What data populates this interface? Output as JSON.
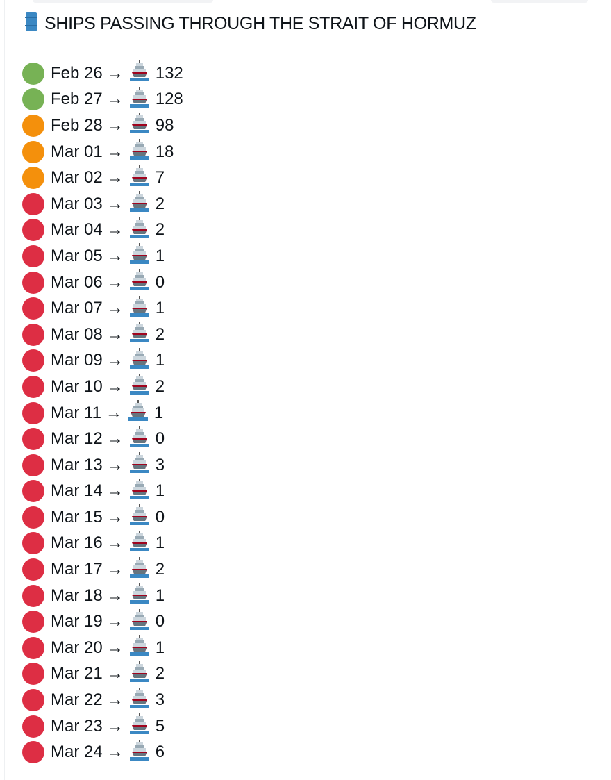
{
  "title": {
    "icon": "oil-drum-icon",
    "text": "SHIPS PASSING THROUGH THE STRAIT OF HORMUZ"
  },
  "arrow": "→",
  "status_colors": {
    "green": "#77b255",
    "orange": "#f4900c",
    "red": "#dd2e44"
  },
  "rows": [
    {
      "date": "Feb 26",
      "count": "132",
      "status": "green"
    },
    {
      "date": "Feb 27",
      "count": "128",
      "status": "green"
    },
    {
      "date": "Feb 28",
      "count": "98",
      "status": "orange"
    },
    {
      "date": "Mar 01",
      "count": "18",
      "status": "orange"
    },
    {
      "date": "Mar 02",
      "count": "7",
      "status": "orange"
    },
    {
      "date": "Mar 03",
      "count": "2",
      "status": "red"
    },
    {
      "date": "Mar 04",
      "count": "2",
      "status": "red"
    },
    {
      "date": "Mar 05",
      "count": "1",
      "status": "red"
    },
    {
      "date": "Mar 06",
      "count": "0",
      "status": "red"
    },
    {
      "date": "Mar 07",
      "count": "1",
      "status": "red"
    },
    {
      "date": "Mar 08",
      "count": "2",
      "status": "red"
    },
    {
      "date": "Mar 09",
      "count": "1",
      "status": "red"
    },
    {
      "date": "Mar 10",
      "count": "2",
      "status": "red"
    },
    {
      "date": "Mar 11",
      "count": "1",
      "status": "red"
    },
    {
      "date": "Mar 12",
      "count": "0",
      "status": "red"
    },
    {
      "date": "Mar 13",
      "count": "3",
      "status": "red"
    },
    {
      "date": "Mar 14",
      "count": "1",
      "status": "red"
    },
    {
      "date": "Mar 15",
      "count": "0",
      "status": "red"
    },
    {
      "date": "Mar 16",
      "count": "1",
      "status": "red"
    },
    {
      "date": "Mar 17",
      "count": "2",
      "status": "red"
    },
    {
      "date": "Mar 18",
      "count": "1",
      "status": "red"
    },
    {
      "date": "Mar 19",
      "count": "0",
      "status": "red"
    },
    {
      "date": "Mar 20",
      "count": "1",
      "status": "red"
    },
    {
      "date": "Mar 21",
      "count": "2",
      "status": "red"
    },
    {
      "date": "Mar 22",
      "count": "3",
      "status": "red"
    },
    {
      "date": "Mar 23",
      "count": "5",
      "status": "red"
    },
    {
      "date": "Mar 24",
      "count": "6",
      "status": "red"
    }
  ]
}
